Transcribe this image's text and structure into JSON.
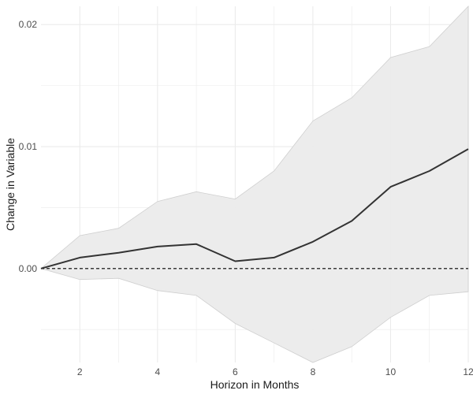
{
  "chart_data": {
    "type": "line",
    "title": "",
    "xlabel": "Horizon in Months",
    "ylabel": "Change in Variable",
    "x": [
      1,
      2,
      3,
      4,
      5,
      6,
      7,
      8,
      9,
      10,
      11,
      12
    ],
    "series": [
      {
        "values": [
          0.0,
          0.0009,
          0.0013,
          0.0018,
          0.002,
          0.0006,
          0.0009,
          0.0022,
          0.0039,
          0.0067,
          0.008,
          0.0098
        ],
        "lower": [
          0.0,
          -0.0009,
          -0.0008,
          -0.0018,
          -0.0022,
          -0.0045,
          -0.0061,
          -0.0077,
          -0.0064,
          -0.004,
          -0.0022,
          -0.0019
        ],
        "upper": [
          0.0,
          0.0027,
          0.0033,
          0.0055,
          0.0063,
          0.0057,
          0.008,
          0.0121,
          0.014,
          0.0173,
          0.0182,
          0.0215
        ]
      }
    ],
    "reference_line": {
      "y": 0.0,
      "style": "dashed"
    },
    "xlim": [
      1,
      12
    ],
    "ylim": [
      -0.0077,
      0.0215
    ],
    "x_ticks": [
      2,
      4,
      6,
      8,
      10,
      12
    ],
    "x_tick_labels": [
      "2",
      "4",
      "6",
      "8",
      "10",
      "12"
    ],
    "y_ticks": [
      0.0,
      0.01,
      0.02
    ],
    "y_tick_labels": [
      "0.00",
      "0.01",
      "0.02"
    ],
    "grid": true,
    "legend": "none",
    "colors": {
      "line": "#333333",
      "band": "#ebebeb",
      "band_edge": "#cfcfcf",
      "grid": "#ebebeb",
      "reference": "#000000"
    }
  }
}
